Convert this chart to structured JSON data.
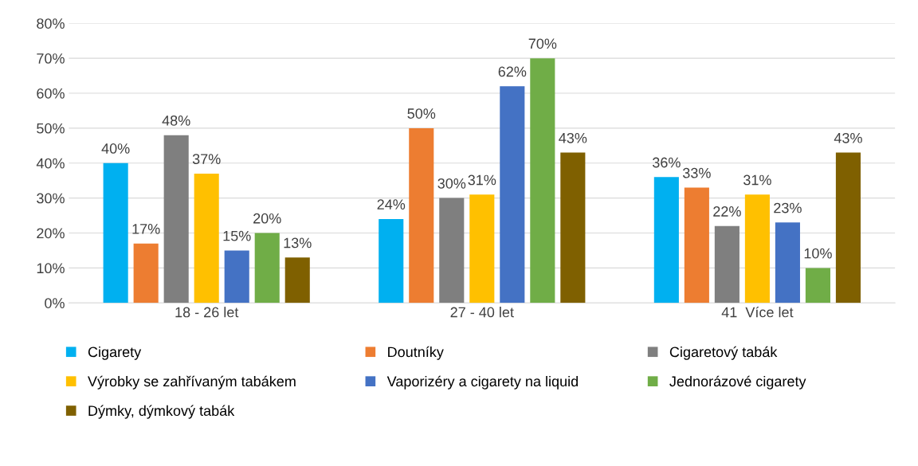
{
  "chart_data": {
    "type": "bar",
    "categories": [
      "18 - 26 let",
      "27 - 40 let",
      "41  Více let"
    ],
    "series": [
      {
        "name": "Cigarety",
        "color": "#00b0f0",
        "values": [
          40,
          24,
          36
        ],
        "value_labels": [
          "40%",
          "24%",
          "36%"
        ]
      },
      {
        "name": "Doutníky",
        "color": "#ed7d31",
        "values": [
          17,
          50,
          33
        ],
        "value_labels": [
          "17%",
          "50%",
          "33%"
        ]
      },
      {
        "name": "Cigaretový tabák",
        "color": "#7f7f7f",
        "values": [
          48,
          30,
          22
        ],
        "value_labels": [
          "48%",
          "30%",
          "22%"
        ]
      },
      {
        "name": "Výrobky se zahřívaným tabákem",
        "color": "#ffc000",
        "values": [
          37,
          31,
          31
        ],
        "value_labels": [
          "37%",
          "31%",
          "31%"
        ]
      },
      {
        "name": "Vaporizéry a cigarety na liquid",
        "color": "#4472c4",
        "values": [
          15,
          62,
          23
        ],
        "value_labels": [
          "15%",
          "62%",
          "23%"
        ]
      },
      {
        "name": "Jednorázové cigarety",
        "color": "#70ad47",
        "values": [
          20,
          70,
          10
        ],
        "value_labels": [
          "20%",
          "70%",
          "10%"
        ]
      },
      {
        "name": "Dýmky, dýmkový tabák",
        "color": "#7f6000",
        "values": [
          13,
          43,
          43
        ],
        "value_labels": [
          "13%",
          "43%",
          "43%"
        ]
      }
    ],
    "ylim": [
      0,
      80
    ],
    "yticks": [
      {
        "value": 0,
        "label": "0%"
      },
      {
        "value": 10,
        "label": "10%"
      },
      {
        "value": 20,
        "label": "20%"
      },
      {
        "value": 30,
        "label": "30%"
      },
      {
        "value": 40,
        "label": "40%"
      },
      {
        "value": 50,
        "label": "50%"
      },
      {
        "value": 60,
        "label": "60%"
      },
      {
        "value": 70,
        "label": "70%"
      },
      {
        "value": 80,
        "label": "80%"
      }
    ],
    "grid": "y",
    "legend": "bottom"
  }
}
